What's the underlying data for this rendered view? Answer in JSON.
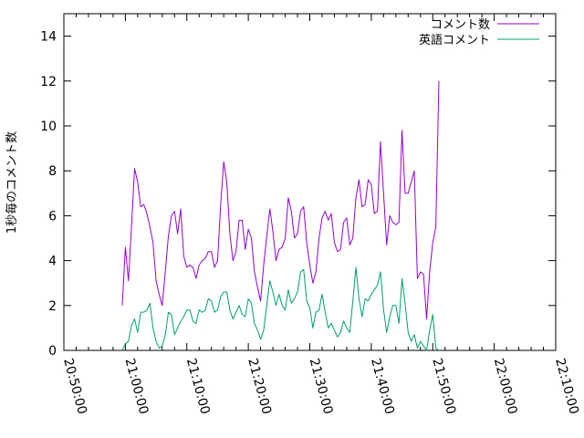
{
  "chart_data": {
    "type": "line",
    "ylabel": "1秒毎のコメント数",
    "xlabel": "",
    "ylim": [
      0,
      15
    ],
    "xlim": [
      "20:50:00",
      "22:10:00"
    ],
    "x_ticks": [
      "20:50:00",
      "21:00:00",
      "21:10:00",
      "21:20:00",
      "21:30:00",
      "21:40:00",
      "21:50:00",
      "22:00:00",
      "22:10:00"
    ],
    "y_ticks": [
      "0",
      "2",
      "4",
      "6",
      "8",
      "10",
      "12",
      "14"
    ],
    "grid": false,
    "legend_position": "top-right",
    "series": [
      {
        "name": "コメント数",
        "color": "#9400d3",
        "points": [
          [
            "20:59:30",
            2.0
          ],
          [
            "21:00:00",
            4.6
          ],
          [
            "21:00:30",
            3.1
          ],
          [
            "21:01:00",
            5.5
          ],
          [
            "21:01:30",
            8.1
          ],
          [
            "21:02:00",
            7.5
          ],
          [
            "21:02:30",
            6.4
          ],
          [
            "21:03:00",
            6.5
          ],
          [
            "21:03:30",
            6.1
          ],
          [
            "21:04:00",
            5.5
          ],
          [
            "21:04:30",
            4.8
          ],
          [
            "21:05:00",
            3.1
          ],
          [
            "21:05:30",
            2.5
          ],
          [
            "21:06:00",
            2.0
          ],
          [
            "21:06:30",
            3.5
          ],
          [
            "21:07:00",
            5.1
          ],
          [
            "21:07:30",
            6.0
          ],
          [
            "21:08:00",
            6.2
          ],
          [
            "21:08:30",
            5.2
          ],
          [
            "21:09:00",
            6.3
          ],
          [
            "21:09:30",
            4.2
          ],
          [
            "21:10:00",
            3.7
          ],
          [
            "21:10:30",
            3.8
          ],
          [
            "21:11:00",
            3.7
          ],
          [
            "21:11:30",
            3.2
          ],
          [
            "21:12:00",
            3.8
          ],
          [
            "21:12:30",
            4.0
          ],
          [
            "21:13:00",
            4.1
          ],
          [
            "21:13:30",
            4.4
          ],
          [
            "21:14:00",
            4.4
          ],
          [
            "21:14:30",
            3.7
          ],
          [
            "21:15:00",
            4.0
          ],
          [
            "21:15:30",
            6.5
          ],
          [
            "21:16:00",
            8.4
          ],
          [
            "21:16:30",
            7.5
          ],
          [
            "21:17:00",
            5.2
          ],
          [
            "21:17:30",
            4.0
          ],
          [
            "21:18:00",
            4.4
          ],
          [
            "21:18:30",
            5.8
          ],
          [
            "21:19:00",
            5.8
          ],
          [
            "21:19:30",
            4.5
          ],
          [
            "21:20:00",
            5.4
          ],
          [
            "21:20:30",
            5.0
          ],
          [
            "21:21:00",
            3.5
          ],
          [
            "21:21:30",
            2.8
          ],
          [
            "21:22:00",
            2.2
          ],
          [
            "21:22:30",
            3.8
          ],
          [
            "21:23:00",
            5.1
          ],
          [
            "21:23:30",
            6.3
          ],
          [
            "21:24:00",
            5.3
          ],
          [
            "21:24:30",
            4.0
          ],
          [
            "21:25:00",
            4.5
          ],
          [
            "21:25:30",
            4.6
          ],
          [
            "21:26:00",
            5.0
          ],
          [
            "21:26:30",
            6.8
          ],
          [
            "21:27:00",
            6.2
          ],
          [
            "21:27:30",
            5.0
          ],
          [
            "21:28:00",
            5.2
          ],
          [
            "21:28:30",
            6.2
          ],
          [
            "21:29:00",
            6.4
          ],
          [
            "21:29:30",
            4.8
          ],
          [
            "21:30:00",
            3.8
          ],
          [
            "21:30:30",
            3.0
          ],
          [
            "21:31:00",
            3.5
          ],
          [
            "21:31:30",
            5.0
          ],
          [
            "21:32:00",
            5.9
          ],
          [
            "21:32:30",
            6.2
          ],
          [
            "21:33:00",
            5.8
          ],
          [
            "21:33:30",
            6.1
          ],
          [
            "21:34:00",
            4.8
          ],
          [
            "21:34:30",
            4.4
          ],
          [
            "21:35:00",
            4.5
          ],
          [
            "21:35:30",
            5.7
          ],
          [
            "21:36:00",
            5.9
          ],
          [
            "21:36:30",
            4.7
          ],
          [
            "21:37:00",
            5.0
          ],
          [
            "21:37:30",
            6.8
          ],
          [
            "21:38:00",
            7.6
          ],
          [
            "21:38:30",
            6.4
          ],
          [
            "21:39:00",
            6.5
          ],
          [
            "21:39:30",
            7.6
          ],
          [
            "21:40:00",
            7.4
          ],
          [
            "21:40:30",
            6.1
          ],
          [
            "21:41:00",
            6.2
          ],
          [
            "21:41:30",
            9.3
          ],
          [
            "21:42:00",
            7.0
          ],
          [
            "21:42:30",
            4.7
          ],
          [
            "21:43:00",
            6.0
          ],
          [
            "21:43:30",
            5.7
          ],
          [
            "21:44:00",
            5.6
          ],
          [
            "21:44:30",
            5.7
          ],
          [
            "21:45:00",
            9.8
          ],
          [
            "21:45:30",
            7.0
          ],
          [
            "21:46:00",
            7.0
          ],
          [
            "21:46:30",
            7.5
          ],
          [
            "21:47:00",
            8.0
          ],
          [
            "21:47:30",
            3.2
          ],
          [
            "21:48:00",
            3.5
          ],
          [
            "21:48:30",
            3.4
          ],
          [
            "21:49:00",
            1.4
          ],
          [
            "21:49:30",
            3.5
          ],
          [
            "21:50:00",
            4.8
          ],
          [
            "21:50:30",
            5.5
          ],
          [
            "21:51:00",
            12.0
          ]
        ]
      },
      {
        "name": "英語コメント",
        "color": "#009e73",
        "points": [
          [
            "20:59:30",
            0.0
          ],
          [
            "21:00:00",
            0.3
          ],
          [
            "21:00:30",
            0.4
          ],
          [
            "21:01:00",
            1.1
          ],
          [
            "21:01:30",
            1.4
          ],
          [
            "21:02:00",
            0.8
          ],
          [
            "21:02:30",
            1.7
          ],
          [
            "21:03:00",
            1.7
          ],
          [
            "21:03:30",
            1.8
          ],
          [
            "21:04:00",
            2.1
          ],
          [
            "21:04:30",
            1.0
          ],
          [
            "21:05:00",
            0.4
          ],
          [
            "21:05:30",
            0.1
          ],
          [
            "21:06:00",
            0.2
          ],
          [
            "21:06:30",
            0.7
          ],
          [
            "21:07:00",
            1.7
          ],
          [
            "21:07:30",
            1.6
          ],
          [
            "21:08:00",
            0.7
          ],
          [
            "21:08:30",
            1.0
          ],
          [
            "21:09:00",
            1.3
          ],
          [
            "21:09:30",
            1.5
          ],
          [
            "21:10:00",
            1.8
          ],
          [
            "21:10:30",
            1.8
          ],
          [
            "21:11:00",
            1.3
          ],
          [
            "21:11:30",
            1.2
          ],
          [
            "21:12:00",
            1.8
          ],
          [
            "21:12:30",
            1.7
          ],
          [
            "21:13:00",
            1.8
          ],
          [
            "21:13:30",
            2.3
          ],
          [
            "21:14:00",
            2.2
          ],
          [
            "21:14:30",
            1.7
          ],
          [
            "21:15:00",
            1.8
          ],
          [
            "21:15:30",
            2.4
          ],
          [
            "21:16:00",
            2.6
          ],
          [
            "21:16:30",
            2.6
          ],
          [
            "21:17:00",
            1.8
          ],
          [
            "21:17:30",
            1.4
          ],
          [
            "21:18:00",
            1.7
          ],
          [
            "21:18:30",
            2.0
          ],
          [
            "21:19:00",
            1.6
          ],
          [
            "21:19:30",
            1.5
          ],
          [
            "21:20:00",
            2.3
          ],
          [
            "21:20:30",
            2.1
          ],
          [
            "21:21:00",
            1.2
          ],
          [
            "21:21:30",
            0.9
          ],
          [
            "21:22:00",
            0.5
          ],
          [
            "21:22:30",
            0.9
          ],
          [
            "21:23:00",
            2.0
          ],
          [
            "21:23:30",
            3.1
          ],
          [
            "21:24:00",
            2.6
          ],
          [
            "21:24:30",
            2.0
          ],
          [
            "21:25:00",
            2.5
          ],
          [
            "21:25:30",
            2.0
          ],
          [
            "21:26:00",
            1.8
          ],
          [
            "21:26:30",
            2.7
          ],
          [
            "21:27:00",
            2.1
          ],
          [
            "21:27:30",
            2.3
          ],
          [
            "21:28:00",
            2.6
          ],
          [
            "21:28:30",
            3.5
          ],
          [
            "21:29:00",
            3.6
          ],
          [
            "21:29:30",
            2.2
          ],
          [
            "21:30:00",
            1.9
          ],
          [
            "21:30:30",
            1.0
          ],
          [
            "21:31:00",
            1.7
          ],
          [
            "21:31:30",
            1.8
          ],
          [
            "21:32:00",
            2.5
          ],
          [
            "21:32:30",
            1.7
          ],
          [
            "21:33:00",
            1.0
          ],
          [
            "21:33:30",
            1.2
          ],
          [
            "21:34:00",
            0.9
          ],
          [
            "21:34:30",
            0.6
          ],
          [
            "21:35:00",
            0.8
          ],
          [
            "21:35:30",
            1.3
          ],
          [
            "21:36:00",
            1.0
          ],
          [
            "21:36:30",
            0.8
          ],
          [
            "21:37:00",
            2.2
          ],
          [
            "21:37:30",
            3.7
          ],
          [
            "21:38:00",
            2.3
          ],
          [
            "21:38:30",
            1.5
          ],
          [
            "21:39:00",
            2.3
          ],
          [
            "21:39:30",
            2.2
          ],
          [
            "21:40:00",
            2.5
          ],
          [
            "21:40:30",
            2.7
          ],
          [
            "21:41:00",
            2.9
          ],
          [
            "21:41:30",
            3.5
          ],
          [
            "21:42:00",
            1.8
          ],
          [
            "21:42:30",
            0.8
          ],
          [
            "21:43:00",
            1.5
          ],
          [
            "21:43:30",
            2.0
          ],
          [
            "21:44:00",
            2.0
          ],
          [
            "21:44:30",
            1.2
          ],
          [
            "21:45:00",
            3.2
          ],
          [
            "21:45:30",
            2.1
          ],
          [
            "21:46:00",
            0.8
          ],
          [
            "21:46:30",
            0.4
          ],
          [
            "21:47:00",
            0.7
          ],
          [
            "21:47:30",
            0.1
          ],
          [
            "21:48:00",
            0.4
          ],
          [
            "21:48:30",
            0.2
          ],
          [
            "21:49:00",
            0.0
          ],
          [
            "21:49:30",
            0.9
          ],
          [
            "21:50:00",
            1.6
          ],
          [
            "21:50:30",
            0.1
          ],
          [
            "21:51:00",
            0.0
          ]
        ]
      }
    ]
  }
}
